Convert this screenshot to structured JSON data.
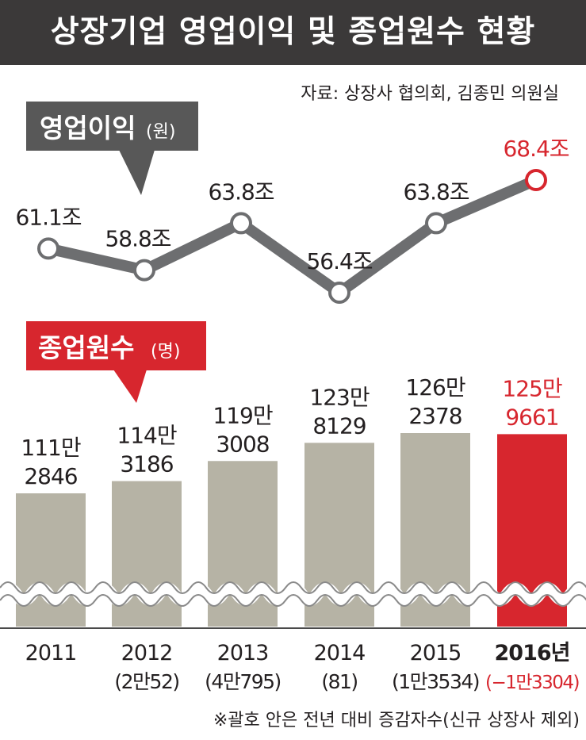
{
  "title": "상장기업 영업이익 및 종업원수 현황",
  "source": "자료: 상장사 협의회, 김종민 의원실",
  "footnote": "※괄호 안은 전년 대비 증감자수(신규 상장사 제외)",
  "colors": {
    "title_bg": "#3b3939",
    "line": "#6d6e70",
    "highlight": "#d7262e",
    "bar": "#b6b3a5",
    "text": "#231f20"
  },
  "chart_data": [
    {
      "type": "line",
      "label": "영업이익",
      "label_unit": "(원)",
      "x": [
        "2011",
        "2012",
        "2013",
        "2014",
        "2015",
        "2016"
      ],
      "values": [
        61.1,
        58.8,
        63.8,
        56.4,
        63.8,
        68.4
      ],
      "data_labels": [
        "61.1조",
        "58.8조",
        "63.8조",
        "56.4조",
        "63.8조",
        "68.4조"
      ],
      "highlight_index": 5
    },
    {
      "type": "bar",
      "label": "종업원수",
      "label_unit": "(명)",
      "categories": [
        "2011",
        "2012",
        "2013",
        "2014",
        "2015",
        "2016년"
      ],
      "values": [
        1112846,
        1143186,
        1193008,
        1238129,
        1262378,
        1259661
      ],
      "data_labels": [
        [
          "111만",
          "2846"
        ],
        [
          "114만",
          "3186"
        ],
        [
          "119만",
          "3008"
        ],
        [
          "123만",
          "8129"
        ],
        [
          "126만",
          "2378"
        ],
        [
          "125만",
          "9661"
        ]
      ],
      "changes": [
        "",
        "(2만52)",
        "(4만795)",
        "(81)",
        "(1만3534)",
        "(−1만3304)"
      ],
      "highlight_index": 5
    }
  ]
}
